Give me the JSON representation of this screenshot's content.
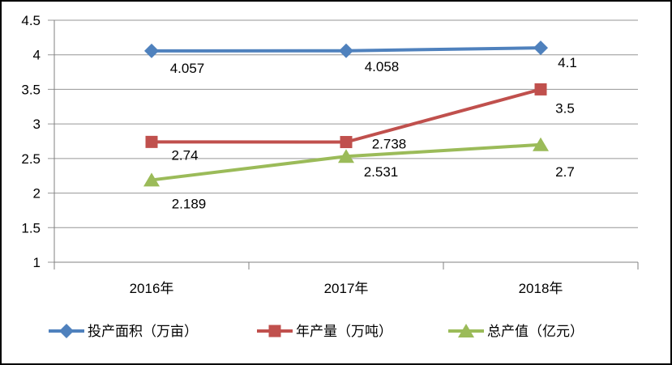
{
  "chart_data": {
    "type": "line",
    "categories": [
      "2016年",
      "2017年",
      "2018年"
    ],
    "series": [
      {
        "name": "投产面积（万亩）",
        "values": [
          4.057,
          4.058,
          4.1
        ],
        "data_labels": [
          "4.057",
          "4.058",
          "4.1"
        ],
        "color": "#4F81BD",
        "marker": "diamond"
      },
      {
        "name": "年产量（万吨）",
        "values": [
          2.74,
          2.738,
          3.5
        ],
        "data_labels": [
          "2.74",
          "2.738",
          "3.5"
        ],
        "color": "#C0504D",
        "marker": "square"
      },
      {
        "name": "总产值（亿元）",
        "values": [
          2.189,
          2.531,
          2.7
        ],
        "data_labels": [
          "2.189",
          "2.531",
          "2.7"
        ],
        "color": "#9BBB59",
        "marker": "triangle"
      }
    ],
    "y_axis": {
      "min": 1,
      "max": 4.5,
      "step": 0.5,
      "tick_labels": [
        "4.5",
        "4",
        "3.5",
        "3",
        "2.5",
        "2",
        "1.5",
        "1"
      ]
    },
    "x_axis": {
      "tick_labels": [
        "2016年",
        "2017年",
        "2018年"
      ]
    },
    "grid": true,
    "legend_position": "bottom",
    "colors": {
      "gridline": "#969696",
      "axis": "#808080",
      "text": "#000000",
      "background": "#FFFFFF",
      "border": "#000000"
    }
  }
}
